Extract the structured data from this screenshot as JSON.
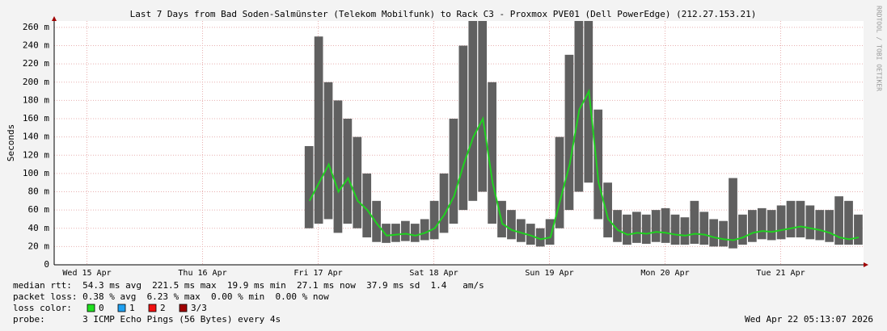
{
  "chart_data": {
    "type": "smokeping",
    "title": "Last 7 Days from Bad Soden-Salmünster (Telekom Mobilfunk) to Rack C3 - Proxmox PVE01 (Dell PowerEdge) (212.27.153.21)",
    "y_label": "Seconds",
    "side_label": "RRDTOOL / TOBI OETIKER",
    "x": [
      53,
      55,
      57,
      59,
      61,
      63,
      65,
      67,
      69,
      71,
      73,
      75,
      77,
      79,
      81,
      83,
      85,
      87,
      89,
      91,
      93,
      95,
      97,
      99,
      101,
      103,
      105,
      107,
      109,
      111,
      113,
      115,
      117,
      119,
      121,
      123,
      125,
      127,
      129,
      131,
      133,
      135,
      137,
      139,
      141,
      143,
      145,
      147,
      149,
      151,
      153,
      155,
      157,
      159,
      161,
      163,
      165,
      167
    ],
    "xlim": [
      0,
      168
    ],
    "xticks": [
      {
        "value": 6.8,
        "label": "Wed 15 Apr"
      },
      {
        "value": 30.8,
        "label": "Thu 16 Apr"
      },
      {
        "value": 54.8,
        "label": "Fri 17 Apr"
      },
      {
        "value": 78.8,
        "label": "Sat 18 Apr"
      },
      {
        "value": 102.8,
        "label": "Sun 19 Apr"
      },
      {
        "value": 126.8,
        "label": "Mon 20 Apr"
      },
      {
        "value": 150.8,
        "label": "Tue 21 Apr"
      }
    ],
    "ylim": [
      0,
      267
    ],
    "yticks": [
      0,
      {
        "value": 20,
        "label": "20 m"
      },
      {
        "value": 40,
        "label": "40 m"
      },
      {
        "value": 60,
        "label": "60 m"
      },
      {
        "value": 80,
        "label": "80 m"
      },
      {
        "value": 100,
        "label": "100 m"
      },
      {
        "value": 120,
        "label": "120 m"
      },
      {
        "value": 140,
        "label": "140 m"
      },
      {
        "value": 160,
        "label": "160 m"
      },
      {
        "value": 180,
        "label": "180 m"
      },
      {
        "value": 200,
        "label": "200 m"
      },
      {
        "value": 220,
        "label": "220 m"
      },
      {
        "value": 240,
        "label": "240 m"
      },
      {
        "value": 260,
        "label": "260 m"
      }
    ],
    "grid": true,
    "series": [
      {
        "name": "median",
        "color": "#20d020",
        "values": [
          70,
          90,
          110,
          80,
          95,
          70,
          60,
          45,
          32,
          33,
          34,
          32,
          35,
          40,
          55,
          75,
          110,
          140,
          160,
          90,
          45,
          38,
          35,
          32,
          28,
          30,
          70,
          110,
          170,
          190,
          90,
          50,
          38,
          33,
          35,
          34,
          36,
          35,
          33,
          32,
          34,
          33,
          30,
          28,
          27,
          30,
          35,
          37,
          36,
          38,
          40,
          42,
          40,
          38,
          35,
          30,
          28,
          30
        ]
      },
      {
        "name": "min",
        "color": "#606060",
        "values": [
          40,
          45,
          50,
          35,
          45,
          40,
          30,
          25,
          24,
          25,
          26,
          25,
          27,
          28,
          35,
          45,
          60,
          70,
          80,
          45,
          30,
          28,
          25,
          22,
          20,
          22,
          40,
          60,
          80,
          90,
          50,
          30,
          25,
          22,
          24,
          23,
          25,
          24,
          22,
          22,
          23,
          22,
          20,
          20,
          18,
          22,
          25,
          28,
          27,
          28,
          30,
          30,
          28,
          27,
          25,
          22,
          22,
          22
        ]
      },
      {
        "name": "max",
        "color": "#606060",
        "values": [
          130,
          250,
          200,
          180,
          160,
          140,
          100,
          70,
          45,
          45,
          48,
          45,
          50,
          70,
          100,
          160,
          240,
          267,
          267,
          200,
          70,
          60,
          50,
          45,
          40,
          50,
          140,
          230,
          267,
          267,
          170,
          90,
          60,
          55,
          58,
          55,
          60,
          62,
          55,
          52,
          70,
          58,
          50,
          48,
          95,
          55,
          60,
          62,
          60,
          65,
          70,
          70,
          65,
          60,
          60,
          75,
          70,
          55
        ]
      }
    ],
    "stats_line": "median rtt:  54.3 ms avg  221.5 ms max  19.9 ms min  27.1 ms now  37.9 ms sd  1.4   am/s",
    "loss_line": "packet loss: 0.38 % avg  6.23 % max  0.00 % min  0.00 % now",
    "loss_color_label": "loss color:",
    "loss_colors": [
      {
        "label": "0",
        "color": "#20e020"
      },
      {
        "label": "1",
        "color": "#20a0f0"
      },
      {
        "label": "2",
        "color": "#f01010"
      },
      {
        "label": "3/3",
        "color": "#a00000"
      }
    ],
    "probe_line": "probe:       3 ICMP Echo Pings (56 Bytes) every 4s",
    "timestamp": "Wed Apr 22 05:13:07 2026"
  }
}
